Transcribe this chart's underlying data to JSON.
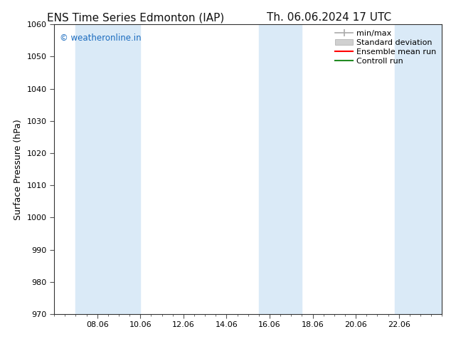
{
  "title_left": "ENS Time Series Edmonton (IAP)",
  "title_right": "Th. 06.06.2024 17 UTC",
  "ylabel": "Surface Pressure (hPa)",
  "ylim": [
    970,
    1060
  ],
  "yticks": [
    970,
    980,
    990,
    1000,
    1010,
    1020,
    1030,
    1040,
    1050,
    1060
  ],
  "xtick_labels": [
    "08.06",
    "10.06",
    "12.06",
    "14.06",
    "16.06",
    "18.06",
    "20.06",
    "22.06"
  ],
  "xtick_positions": [
    2,
    4,
    6,
    8,
    10,
    12,
    14,
    16
  ],
  "xlim": [
    0,
    18
  ],
  "shaded_bands": [
    {
      "x_start": 1,
      "x_end": 4
    },
    {
      "x_start": 9.5,
      "x_end": 11.5
    },
    {
      "x_start": 15.8,
      "x_end": 18
    }
  ],
  "band_color": "#daeaf7",
  "background_color": "#ffffff",
  "watermark_text": "© weatheronline.in",
  "watermark_color": "#1a6bbf",
  "legend_entries": [
    {
      "label": "min/max",
      "color": "#aaaaaa",
      "style": "minmax"
    },
    {
      "label": "Standard deviation",
      "color": "#cccccc",
      "style": "band"
    },
    {
      "label": "Ensemble mean run",
      "color": "#ff0000",
      "style": "line"
    },
    {
      "label": "Controll run",
      "color": "#228b22",
      "style": "line"
    }
  ],
  "title_fontsize": 11,
  "axis_label_fontsize": 9,
  "tick_fontsize": 8,
  "legend_fontsize": 8,
  "minor_tick_interval": 0.5
}
